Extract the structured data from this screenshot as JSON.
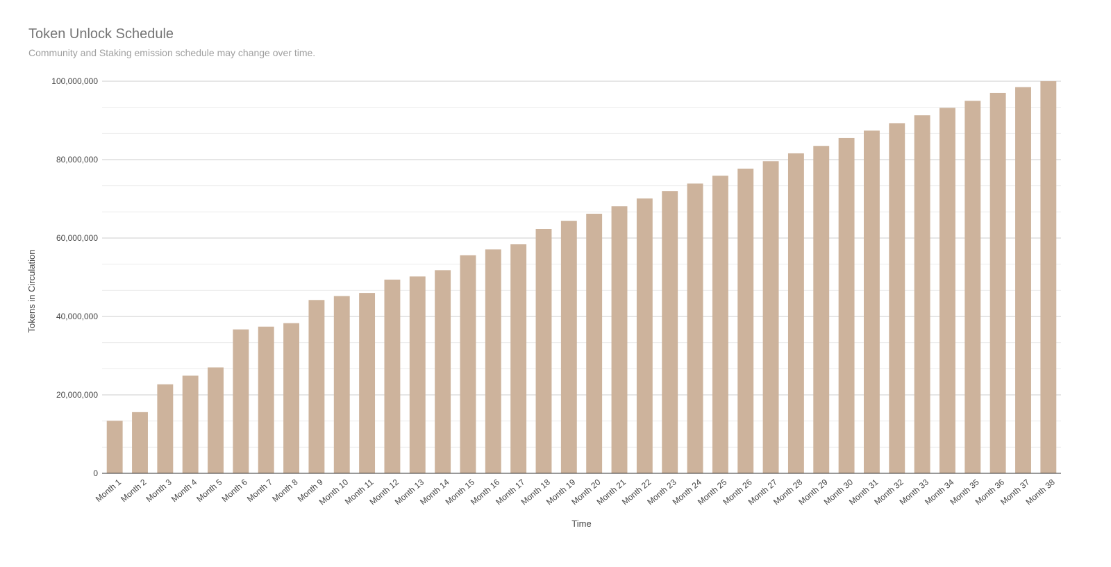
{
  "chart_data": {
    "type": "bar",
    "title": "Token Unlock Schedule",
    "subtitle": "Community and Staking emission schedule may change over time.",
    "xlabel": "Time",
    "ylabel": "Tokens in Circulation",
    "ylim": [
      0,
      100000000
    ],
    "yticks": [
      {
        "value": 0,
        "label": "0"
      },
      {
        "value": 20000000,
        "label": "20,000,000"
      },
      {
        "value": 40000000,
        "label": "40,000,000"
      },
      {
        "value": 60000000,
        "label": "60,000,000"
      },
      {
        "value": 80000000,
        "label": "80,000,000"
      },
      {
        "value": 100000000,
        "label": "100,000,000"
      }
    ],
    "minor_gridlines": true,
    "legend": "none",
    "bar_color": "#cdb39c",
    "categories": [
      "Month 1",
      "Month 2",
      "Month 3",
      "Month 4",
      "Month 5",
      "Month 6",
      "Month 7",
      "Month 8",
      "Month 9",
      "Month 10",
      "Month 11",
      "Month 12",
      "Month 13",
      "Month 14",
      "Month 15",
      "Month 16",
      "Month 17",
      "Month 18",
      "Month 19",
      "Month 20",
      "Month 21",
      "Month 22",
      "Month 23",
      "Month 24",
      "Month 25",
      "Month 26",
      "Month 27",
      "Month 28",
      "Month 29",
      "Month 30",
      "Month 31",
      "Month 32",
      "Month 33",
      "Month 34",
      "Month 35",
      "Month 36",
      "Month 37",
      "Month 38"
    ],
    "values": [
      13400000,
      15600000,
      22700000,
      24900000,
      27000000,
      36700000,
      37400000,
      38300000,
      44200000,
      45200000,
      46000000,
      49400000,
      50200000,
      51800000,
      55600000,
      57100000,
      58400000,
      62300000,
      64400000,
      66200000,
      68100000,
      70100000,
      72000000,
      73900000,
      75900000,
      77700000,
      79600000,
      81600000,
      83500000,
      85500000,
      87400000,
      89300000,
      91300000,
      93200000,
      95000000,
      97000000,
      98500000,
      100000000
    ]
  }
}
